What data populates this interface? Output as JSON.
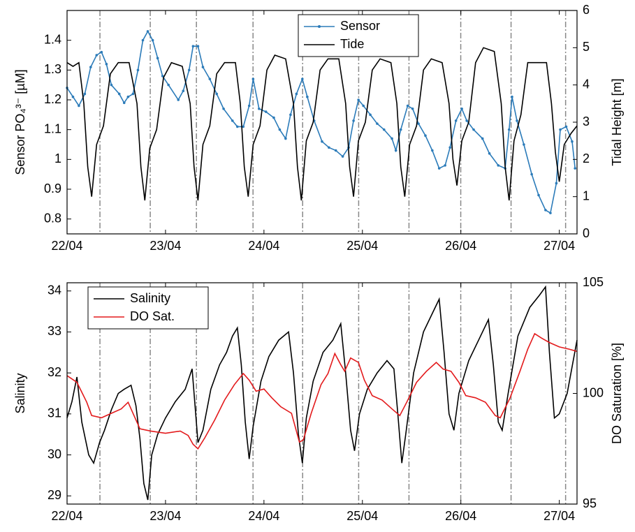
{
  "chart_data": [
    {
      "type": "line",
      "ylabel": "Sensor PO₄³⁻ [µM]",
      "y2label": "Tidal Height [m]",
      "legend": "upper center",
      "xlim": [
        0,
        5.18
      ],
      "xticks": [
        {
          "value": 0,
          "label": "22/04"
        },
        {
          "value": 1,
          "label": "23/04"
        },
        {
          "value": 2,
          "label": "24/04"
        },
        {
          "value": 3,
          "label": "25/04"
        },
        {
          "value": 4,
          "label": "26/04"
        },
        {
          "value": 5,
          "label": "27/04"
        }
      ],
      "ylim": [
        0.75,
        1.5
      ],
      "yticks": [
        0.8,
        0.9,
        1,
        1.1,
        1.2,
        1.3,
        1.4
      ],
      "y2lim": [
        0,
        6
      ],
      "y2ticks": [
        0,
        1,
        2,
        3,
        4,
        5,
        6
      ],
      "vlines": [
        0.334,
        0.845,
        1.314,
        1.889,
        2.393,
        2.962,
        3.473,
        3.999,
        4.51,
        5.064
      ],
      "series": [
        {
          "name": "Sensor",
          "color": "#2b7bb9",
          "markers": true,
          "x": [
            0,
            0.06,
            0.12,
            0.18,
            0.24,
            0.3,
            0.35,
            0.4,
            0.45,
            0.53,
            0.58,
            0.62,
            0.67,
            0.72,
            0.77,
            0.82,
            0.87,
            0.92,
            0.97,
            1.03,
            1.13,
            1.18,
            1.24,
            1.28,
            1.33,
            1.38,
            1.45,
            1.52,
            1.59,
            1.68,
            1.73,
            1.79,
            1.85,
            1.89,
            1.95,
            2.02,
            2.1,
            2.16,
            2.22,
            2.27,
            2.33,
            2.39,
            2.44,
            2.51,
            2.59,
            2.66,
            2.73,
            2.8,
            2.86,
            2.91,
            2.96,
            3.01,
            3.08,
            3.15,
            3.22,
            3.3,
            3.34,
            3.39,
            3.46,
            3.51,
            3.57,
            3.64,
            3.71,
            3.78,
            3.84,
            3.89,
            3.95,
            4.01,
            4.06,
            4.13,
            4.22,
            4.29,
            4.38,
            4.45,
            4.49,
            4.52,
            4.57,
            4.64,
            4.72,
            4.79,
            4.86,
            4.91,
            4.97,
            5.01,
            5.07,
            5.13,
            5.16
          ],
          "values": [
            1.24,
            1.21,
            1.18,
            1.22,
            1.31,
            1.35,
            1.36,
            1.32,
            1.25,
            1.22,
            1.19,
            1.21,
            1.22,
            1.3,
            1.4,
            1.43,
            1.4,
            1.34,
            1.28,
            1.25,
            1.2,
            1.23,
            1.3,
            1.38,
            1.38,
            1.31,
            1.27,
            1.22,
            1.17,
            1.13,
            1.11,
            1.11,
            1.18,
            1.27,
            1.17,
            1.16,
            1.14,
            1.1,
            1.07,
            1.15,
            1.22,
            1.27,
            1.21,
            1.13,
            1.06,
            1.04,
            1.03,
            1.01,
            1.04,
            1.13,
            1.2,
            1.18,
            1.15,
            1.12,
            1.1,
            1.07,
            1.03,
            1.1,
            1.18,
            1.17,
            1.12,
            1.08,
            1.03,
            0.97,
            0.98,
            1.04,
            1.13,
            1.17,
            1.13,
            1.1,
            1.07,
            1.02,
            0.98,
            0.97,
            1.1,
            1.21,
            1.13,
            1.05,
            0.95,
            0.88,
            0.83,
            0.82,
            0.92,
            1.1,
            1.11,
            1.06,
            0.97
          ]
        },
        {
          "name": "Tide",
          "color": "#000000",
          "axis": "y2",
          "x": [
            0,
            0.06,
            0.12,
            0.17,
            0.21,
            0.25,
            0.3,
            0.37,
            0.44,
            0.52,
            0.63,
            0.71,
            0.75,
            0.79,
            0.84,
            0.91,
            0.98,
            1.06,
            1.17,
            1.25,
            1.29,
            1.33,
            1.38,
            1.45,
            1.52,
            1.6,
            1.71,
            1.76,
            1.8,
            1.84,
            1.89,
            1.96,
            2.03,
            2.11,
            2.22,
            2.3,
            2.34,
            2.38,
            2.43,
            2.5,
            2.57,
            2.65,
            2.76,
            2.83,
            2.87,
            2.91,
            2.96,
            3.03,
            3.1,
            3.18,
            3.29,
            3.35,
            3.39,
            3.43,
            3.48,
            3.55,
            3.62,
            3.7,
            3.81,
            3.88,
            3.92,
            3.96,
            4.01,
            4.08,
            4.15,
            4.23,
            4.34,
            4.41,
            4.45,
            4.49,
            4.54,
            4.61,
            4.68,
            4.76,
            4.87,
            4.92,
            4.96,
            5.0,
            5.05,
            5.12,
            5.18
          ],
          "values": [
            4.6,
            4.5,
            4.6,
            3.5,
            1.8,
            1.0,
            2.4,
            2.9,
            4.3,
            4.6,
            4.6,
            3.5,
            1.8,
            0.9,
            2.3,
            2.8,
            4.2,
            4.6,
            4.5,
            3.5,
            1.8,
            0.9,
            2.4,
            2.9,
            4.3,
            4.6,
            4.6,
            3.5,
            1.8,
            1.0,
            2.4,
            2.9,
            4.4,
            4.8,
            4.7,
            3.5,
            1.8,
            0.9,
            2.5,
            3.0,
            4.4,
            4.7,
            4.7,
            3.5,
            1.8,
            1.0,
            2.5,
            3.0,
            4.4,
            4.7,
            4.6,
            3.5,
            1.8,
            1.0,
            2.4,
            2.9,
            4.4,
            4.7,
            4.6,
            3.5,
            2.0,
            1.3,
            2.5,
            3.0,
            4.6,
            5.0,
            4.9,
            3.5,
            1.8,
            0.9,
            2.5,
            3.2,
            4.6,
            4.6,
            4.6,
            3.5,
            2.2,
            1.4,
            2.4,
            2.7,
            2.9
          ]
        }
      ]
    },
    {
      "type": "line",
      "ylabel": "Salinity",
      "y2label": "DO Saturation [%]",
      "legend": "upper left",
      "xlim": [
        0,
        5.18
      ],
      "xticks": [
        {
          "value": 0,
          "label": "22/04"
        },
        {
          "value": 1,
          "label": "23/04"
        },
        {
          "value": 2,
          "label": "24/04"
        },
        {
          "value": 3,
          "label": "25/04"
        },
        {
          "value": 4,
          "label": "26/04"
        },
        {
          "value": 5,
          "label": "27/04"
        }
      ],
      "ylim": [
        28.8,
        34.2
      ],
      "yticks": [
        29,
        30,
        31,
        32,
        33,
        34
      ],
      "y2lim": [
        95,
        105
      ],
      "y2ticks": [
        95,
        100,
        105
      ],
      "vlines": [
        0.334,
        0.845,
        1.314,
        1.889,
        2.393,
        2.962,
        3.473,
        3.999,
        4.51,
        5.064
      ],
      "series": [
        {
          "name": "Salinity",
          "color": "#000000",
          "x": [
            0,
            0.05,
            0.1,
            0.15,
            0.22,
            0.27,
            0.33,
            0.38,
            0.45,
            0.52,
            0.58,
            0.65,
            0.7,
            0.74,
            0.78,
            0.82,
            0.86,
            0.92,
            1.0,
            1.1,
            1.2,
            1.27,
            1.3,
            1.33,
            1.38,
            1.46,
            1.55,
            1.62,
            1.68,
            1.73,
            1.77,
            1.81,
            1.85,
            1.89,
            1.97,
            2.05,
            2.15,
            2.25,
            2.3,
            2.35,
            2.39,
            2.43,
            2.5,
            2.6,
            2.7,
            2.78,
            2.83,
            2.88,
            2.92,
            2.97,
            3.05,
            3.15,
            3.25,
            3.32,
            3.36,
            3.4,
            3.44,
            3.52,
            3.62,
            3.72,
            3.78,
            3.83,
            3.88,
            3.93,
            3.98,
            4.08,
            4.18,
            4.28,
            4.33,
            4.38,
            4.42,
            4.48,
            4.58,
            4.7,
            4.8,
            4.86,
            4.9,
            4.95,
            5.0,
            5.08,
            5.18
          ],
          "values": [
            30.9,
            31.3,
            31.9,
            30.8,
            30.0,
            29.8,
            30.3,
            30.6,
            31.1,
            31.5,
            31.6,
            31.7,
            31.2,
            30.4,
            29.3,
            28.9,
            30.0,
            30.5,
            30.9,
            31.3,
            31.6,
            32.1,
            31.2,
            30.3,
            30.6,
            31.6,
            32.2,
            32.5,
            32.9,
            33.1,
            32.2,
            30.8,
            29.9,
            30.7,
            31.8,
            32.4,
            32.8,
            33.0,
            32.0,
            30.5,
            29.8,
            30.9,
            31.8,
            32.5,
            32.8,
            33.2,
            32.0,
            30.6,
            30.1,
            31.0,
            31.6,
            32.0,
            32.3,
            32.1,
            31.0,
            29.8,
            30.5,
            32.0,
            33.0,
            33.5,
            33.8,
            32.5,
            31.0,
            30.6,
            31.5,
            32.3,
            32.8,
            33.3,
            32.2,
            30.8,
            30.6,
            31.5,
            32.9,
            33.6,
            33.9,
            34.1,
            32.5,
            30.9,
            31.0,
            31.5,
            32.8
          ]
        },
        {
          "name": "DO Sat.",
          "color": "#e31a1c",
          "axis": "y2",
          "x": [
            0,
            0.1,
            0.2,
            0.25,
            0.35,
            0.45,
            0.55,
            0.62,
            0.68,
            0.74,
            0.85,
            1.0,
            1.15,
            1.23,
            1.28,
            1.33,
            1.4,
            1.5,
            1.6,
            1.7,
            1.79,
            1.85,
            1.92,
            2.0,
            2.08,
            2.17,
            2.28,
            2.36,
            2.4,
            2.48,
            2.58,
            2.65,
            2.72,
            2.78,
            2.82,
            2.88,
            2.96,
            3.02,
            3.1,
            3.2,
            3.3,
            3.38,
            3.45,
            3.55,
            3.65,
            3.75,
            3.82,
            3.9,
            3.98,
            4.05,
            4.15,
            4.25,
            4.35,
            4.4,
            4.5,
            4.6,
            4.68,
            4.75,
            4.82,
            4.9,
            5.0,
            5.1,
            5.18
          ],
          "values": [
            100.8,
            100.5,
            99.6,
            99.0,
            98.9,
            99.1,
            99.3,
            99.6,
            99.0,
            98.4,
            98.3,
            98.2,
            98.3,
            98.1,
            97.7,
            97.5,
            98.0,
            98.8,
            99.7,
            100.4,
            100.9,
            100.6,
            100.1,
            100.2,
            99.8,
            99.4,
            99.1,
            97.8,
            97.9,
            99.1,
            100.4,
            100.9,
            101.8,
            101.3,
            101.0,
            101.6,
            101.4,
            100.6,
            99.9,
            99.7,
            99.3,
            99.0,
            99.6,
            100.5,
            101.0,
            101.4,
            101.1,
            101.0,
            100.5,
            99.9,
            99.8,
            99.6,
            99.0,
            98.9,
            99.8,
            101.0,
            102.0,
            102.7,
            102.5,
            102.3,
            102.1,
            102.0,
            101.9
          ]
        }
      ]
    }
  ]
}
